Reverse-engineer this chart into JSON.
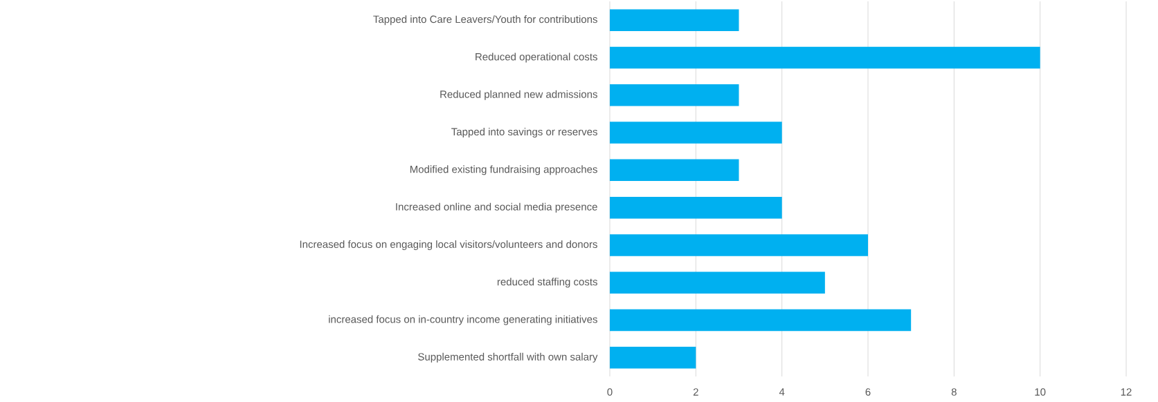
{
  "chart_data": {
    "type": "bar",
    "orientation": "horizontal",
    "categories": [
      "Tapped into Care Leavers/Youth for contributions",
      "Reduced operational costs",
      "Reduced planned new admissions",
      "Tapped into savings or reserves",
      "Modified existing fundraising approaches",
      "Increased online and social media presence",
      "Increased focus on engaging local visitors/volunteers and donors",
      "reduced staffing costs",
      "increased focus on in-country income generating initiatives",
      "Supplemented shortfall with own salary"
    ],
    "values": [
      3,
      10,
      3,
      4,
      3,
      4,
      6,
      5,
      7,
      2
    ],
    "color": "#00b0f0",
    "xlim": [
      0,
      12
    ],
    "xticks": [
      0,
      2,
      4,
      6,
      8,
      10,
      12
    ],
    "grid": "x"
  }
}
